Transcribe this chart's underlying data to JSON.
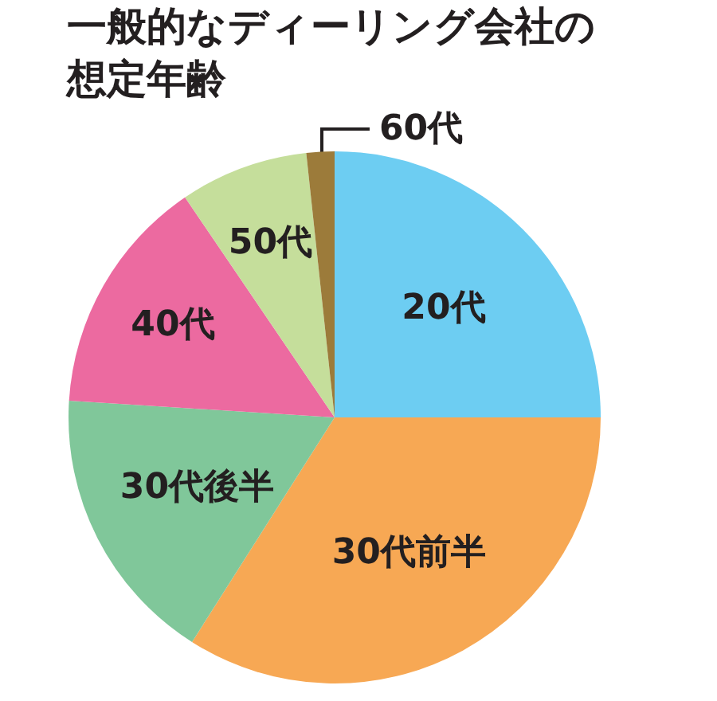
{
  "chart_data": {
    "type": "pie",
    "title": "一般的なディーリング会社の想定年齢",
    "categories": [
      "20代",
      "30代前半",
      "30代後半",
      "40代",
      "50代",
      "60代"
    ],
    "values": [
      25,
      34,
      17,
      14.5,
      7.8,
      1.7
    ],
    "colors": [
      "#6dcdf2",
      "#f7a854",
      "#80c79a",
      "#ec6aa0",
      "#c5de9b",
      "#9c7b3a"
    ]
  }
}
